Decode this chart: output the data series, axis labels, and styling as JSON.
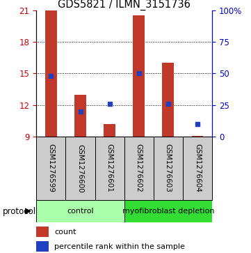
{
  "title": "GDS5821 / ILMN_3151736",
  "samples": [
    "GSM1276599",
    "GSM1276600",
    "GSM1276601",
    "GSM1276602",
    "GSM1276603",
    "GSM1276604"
  ],
  "bar_values": [
    21.0,
    13.0,
    10.2,
    20.5,
    16.0,
    9.1
  ],
  "bar_base": 9,
  "percentile_values": [
    48,
    20,
    26,
    50,
    26,
    10
  ],
  "ylim_left": [
    9,
    21
  ],
  "ylim_right": [
    0,
    100
  ],
  "yticks_left": [
    9,
    12,
    15,
    18,
    21
  ],
  "ytick_labels_left": [
    "9",
    "12",
    "15",
    "18",
    "21"
  ],
  "ytick_labels_right": [
    "0",
    "25",
    "50",
    "75",
    "100%"
  ],
  "bar_color": "#c0392b",
  "dot_color": "#2040c0",
  "axis_left_color": "#cc0000",
  "axis_right_color": "#0000cc",
  "groups": [
    {
      "label": "control",
      "indices": [
        0,
        1,
        2
      ],
      "color": "#aaffaa"
    },
    {
      "label": "myofibroblast depletion",
      "indices": [
        3,
        4,
        5
      ],
      "color": "#33dd33"
    }
  ],
  "protocol_label": "protocol",
  "legend_bar_label": "count",
  "legend_dot_label": "percentile rank within the sample",
  "sample_box_color": "#cccccc",
  "background_color": "#ffffff",
  "gridlines_at": [
    12,
    15,
    18
  ],
  "bar_width": 0.4
}
